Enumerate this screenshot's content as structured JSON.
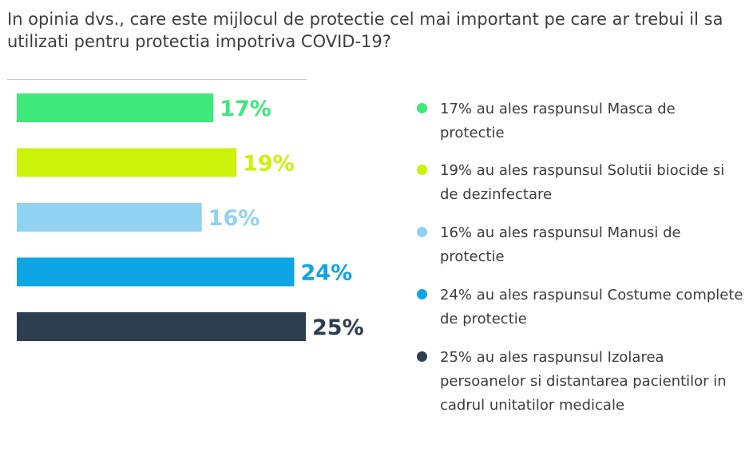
{
  "title": "In opinia dvs., care este mijlocul de protectie cel mai important pe care ar trebui il sa utilizati pentru protectia impotriva COVID-19?",
  "chart_data": {
    "type": "bar",
    "orientation": "horizontal",
    "categories": [
      "Masca de protectie",
      "Solutii biocide si de dezinfectare",
      "Manusi de protectie",
      "Costume complete de protectie",
      "Izolarea persoanelor si distantarea pacientilor in cadrul unitatilor medicale"
    ],
    "values": [
      17,
      19,
      16,
      24,
      25
    ],
    "value_labels": [
      "17%",
      "19%",
      "16%",
      "24%",
      "25%"
    ],
    "colors": [
      "#3ee87a",
      "#ccf10a",
      "#8fd2f1",
      "#0ea5e4",
      "#2c3e50"
    ],
    "xlim": [
      0,
      25
    ],
    "grid": false,
    "legend_position": "right",
    "legend": [
      "17% au ales raspunsul Masca de protectie",
      "19% au ales raspunsul Solutii biocide si de dezinfectare",
      "16% au ales raspunsul Manusi de protectie",
      "24% au ales raspunsul Costume complete de protectie",
      "25% au ales raspunsul Izolarea persoanelor si distantarea pacientilor in cadrul unitatilor medicale"
    ]
  }
}
